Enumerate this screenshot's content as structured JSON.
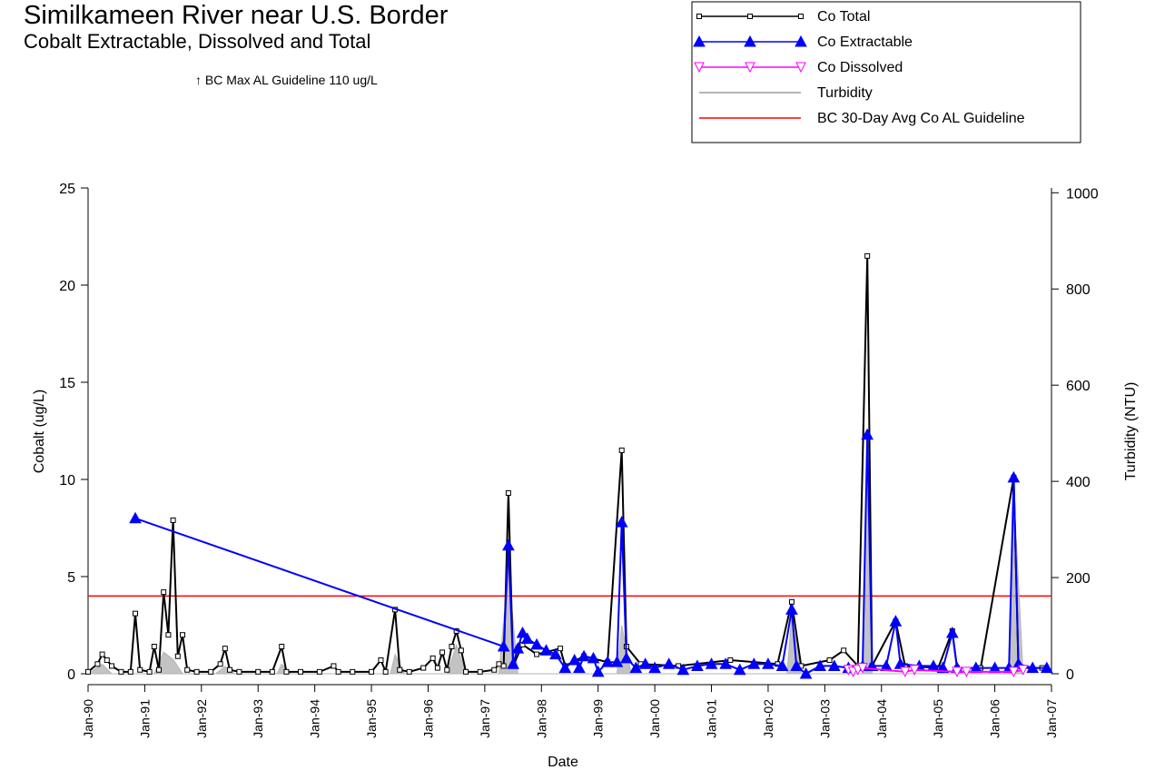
{
  "chart_data": {
    "type": "line",
    "title": "Similkameen River near U.S. Border",
    "subtitle": "Cobalt Extractable, Dissolved and Total",
    "annotation": "↑ BC Max AL Guideline 110 ug/L",
    "x_label": "Date",
    "y_label": "Cobalt (ug/L)",
    "y2_label": "Turbidity (NTU)",
    "xlim": [
      "1990-01",
      "2007-01"
    ],
    "xticks": [
      {
        "value": "1990-01",
        "label": "Jan-90"
      },
      {
        "value": "1991-01",
        "label": "Jan-91"
      },
      {
        "value": "1992-01",
        "label": "Jan-92"
      },
      {
        "value": "1993-01",
        "label": "Jan-93"
      },
      {
        "value": "1994-01",
        "label": "Jan-94"
      },
      {
        "value": "1995-01",
        "label": "Jan-95"
      },
      {
        "value": "1996-01",
        "label": "Jan-96"
      },
      {
        "value": "1997-01",
        "label": "Jan-97"
      },
      {
        "value": "1998-01",
        "label": "Jan-98"
      },
      {
        "value": "1999-01",
        "label": "Jan-99"
      },
      {
        "value": "2000-01",
        "label": "Jan-00"
      },
      {
        "value": "2001-01",
        "label": "Jan-01"
      },
      {
        "value": "2002-01",
        "label": "Jan-02"
      },
      {
        "value": "2003-01",
        "label": "Jan-03"
      },
      {
        "value": "2004-01",
        "label": "Jan-04"
      },
      {
        "value": "2005-01",
        "label": "Jan-05"
      },
      {
        "value": "2006-01",
        "label": "Jan-06"
      },
      {
        "value": "2007-01",
        "label": "Jan-07"
      }
    ],
    "ylim": [
      0,
      25
    ],
    "yticks": [
      0,
      5,
      10,
      15,
      20,
      25
    ],
    "y2lim": [
      0,
      1010
    ],
    "y2ticks": [
      0,
      200,
      400,
      600,
      800,
      1000
    ],
    "reference_line": {
      "name": "BC 30-Day Avg Co AL Guideline",
      "value": 4,
      "color": "#ff0000"
    },
    "series": [
      {
        "name": "Turbidity",
        "color": "#b4b4b4",
        "axis": "y2",
        "marker": "none",
        "x": [
          "1990-01",
          "1990-04",
          "1990-06",
          "1991-03",
          "1991-05",
          "1991-07",
          "1991-09",
          "1992-04",
          "1992-06",
          "1992-08",
          "1993-05",
          "1993-06",
          "1993-08",
          "1995-05",
          "1995-06",
          "1995-08",
          "1996-05",
          "1996-07",
          "1996-09",
          "1997-04",
          "1997-06",
          "1997-08",
          "1999-05",
          "1999-06",
          "1999-08",
          "2002-05",
          "2002-06",
          "2002-08",
          "2003-09",
          "2003-10",
          "2003-11",
          "2006-04",
          "2006-05",
          "2006-07"
        ],
        "values": [
          0,
          20,
          0,
          0,
          45,
          30,
          0,
          0,
          15,
          0,
          0,
          20,
          0,
          0,
          40,
          0,
          0,
          60,
          0,
          0,
          220,
          0,
          0,
          100,
          0,
          0,
          120,
          0,
          0,
          480,
          0,
          0,
          380,
          0
        ]
      },
      {
        "name": "Co  Total",
        "color": "#000000",
        "marker": "square",
        "x": [
          "1990-01",
          "1990-03",
          "1990-04",
          "1990-05",
          "1990-06",
          "1990-08",
          "1990-10",
          "1990-11",
          "1990-12",
          "1991-02",
          "1991-03",
          "1991-04",
          "1991-05",
          "1991-06",
          "1991-07",
          "1991-08",
          "1991-09",
          "1991-10",
          "1991-12",
          "1992-03",
          "1992-05",
          "1992-06",
          "1992-07",
          "1992-09",
          "1993-01",
          "1993-04",
          "1993-06",
          "1993-07",
          "1993-10",
          "1994-02",
          "1994-05",
          "1994-06",
          "1994-09",
          "1995-01",
          "1995-03",
          "1995-04",
          "1995-06",
          "1995-07",
          "1995-09",
          "1995-12",
          "1996-02",
          "1996-03",
          "1996-04",
          "1996-05",
          "1996-06",
          "1996-07",
          "1996-08",
          "1996-09",
          "1996-12",
          "1997-03",
          "1997-04",
          "1997-05",
          "1997-06",
          "1997-07",
          "1997-09",
          "1997-12",
          "1998-05",
          "1998-06",
          "1998-10",
          "1999-03",
          "1999-06",
          "1999-07",
          "1999-10",
          "2000-06",
          "2001-05",
          "2002-03",
          "2002-06",
          "2002-08",
          "2003-02",
          "2003-05",
          "2003-08",
          "2003-10",
          "2003-11",
          "2004-04",
          "2004-06",
          "2005-01",
          "2005-04",
          "2005-05",
          "2005-10",
          "2006-05",
          "2006-06",
          "2006-11"
        ],
        "values": [
          0.1,
          0.5,
          1.0,
          0.7,
          0.4,
          0.1,
          0.1,
          3.1,
          0.2,
          0.1,
          1.4,
          0.2,
          4.2,
          2.0,
          7.9,
          0.9,
          2.0,
          0.2,
          0.1,
          0.1,
          0.5,
          1.3,
          0.2,
          0.1,
          0.1,
          0.1,
          1.4,
          0.1,
          0.1,
          0.1,
          0.4,
          0.1,
          0.1,
          0.1,
          0.7,
          0.1,
          3.3,
          0.2,
          0.1,
          0.3,
          0.8,
          0.3,
          1.1,
          0.2,
          1.4,
          2.2,
          1.2,
          0.1,
          0.1,
          0.2,
          0.5,
          0.4,
          9.3,
          0.4,
          1.5,
          1.0,
          1.3,
          0.4,
          0.9,
          0.6,
          11.5,
          1.4,
          0.5,
          0.4,
          0.7,
          0.5,
          3.7,
          0.4,
          0.7,
          1.2,
          0.4,
          21.5,
          0.4,
          2.7,
          0.4,
          0.3,
          2.2,
          0.3,
          0.3,
          10.1,
          0.3,
          0.3
        ]
      },
      {
        "name": "Co  Extractable",
        "color": "#0000ff",
        "marker": "triangle",
        "x": [
          "1990-11",
          "1997-05",
          "1997-06",
          "1997-07",
          "1997-08",
          "1997-09",
          "1997-10",
          "1997-12",
          "1998-02",
          "1998-04",
          "1998-06",
          "1998-08",
          "1998-09",
          "1998-10",
          "1998-12",
          "1999-01",
          "1999-03",
          "1999-05",
          "1999-06",
          "1999-07",
          "1999-09",
          "1999-11",
          "2000-01",
          "2000-04",
          "2000-07",
          "2000-10",
          "2001-01",
          "2001-04",
          "2001-07",
          "2001-10",
          "2002-01",
          "2002-04",
          "2002-06",
          "2002-07",
          "2002-09",
          "2002-12",
          "2003-03",
          "2003-06",
          "2003-09",
          "2003-10",
          "2003-11",
          "2004-02",
          "2004-04",
          "2004-05",
          "2004-09",
          "2004-12",
          "2005-02",
          "2005-04",
          "2005-05",
          "2005-09",
          "2006-01",
          "2006-04",
          "2006-05",
          "2006-06",
          "2006-09",
          "2006-12"
        ],
        "values": [
          8.0,
          1.4,
          6.6,
          0.5,
          1.3,
          2.1,
          1.8,
          1.5,
          1.2,
          1.0,
          0.3,
          0.7,
          0.3,
          0.9,
          0.8,
          0.1,
          0.6,
          0.6,
          7.8,
          0.8,
          0.3,
          0.5,
          0.3,
          0.5,
          0.2,
          0.4,
          0.5,
          0.5,
          0.2,
          0.5,
          0.5,
          0.4,
          3.3,
          0.4,
          0.0,
          0.4,
          0.4,
          0.3,
          0.4,
          12.3,
          0.4,
          0.4,
          2.7,
          0.5,
          0.4,
          0.4,
          0.3,
          2.1,
          0.3,
          0.3,
          0.3,
          0.3,
          10.1,
          0.5,
          0.3,
          0.3
        ]
      },
      {
        "name": "Co  Dissolved",
        "color": "#ff00ff",
        "marker": "triangle-down",
        "x": [
          "2003-06",
          "2003-07",
          "2003-08",
          "2003-09",
          "2004-06",
          "2004-08",
          "2005-05",
          "2005-07",
          "2006-05",
          "2006-07"
        ],
        "values": [
          0.2,
          0.1,
          0.2,
          0.3,
          0.1,
          0.2,
          0.1,
          0.1,
          0.1,
          0.2
        ]
      }
    ]
  }
}
